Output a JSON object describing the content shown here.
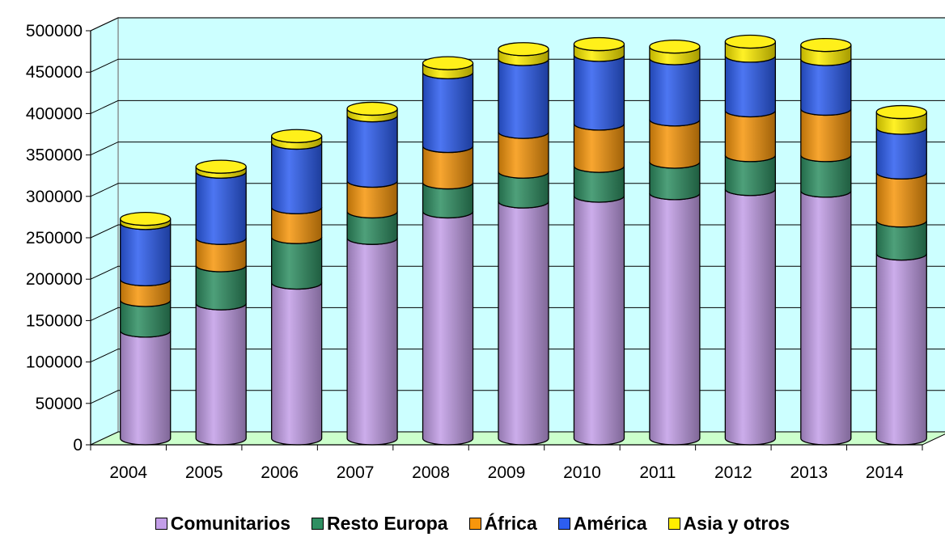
{
  "chart_data": {
    "type": "bar",
    "stacked": true,
    "style": "3d-cylinder",
    "title": "",
    "xlabel": "",
    "ylabel": "",
    "categories": [
      "2004",
      "2005",
      "2006",
      "2007",
      "2008",
      "2009",
      "2010",
      "2011",
      "2012",
      "2013",
      "2014"
    ],
    "ylim": [
      0,
      500000
    ],
    "yticks": [
      0,
      50000,
      100000,
      150000,
      200000,
      250000,
      300000,
      350000,
      400000,
      450000,
      500000
    ],
    "grid": true,
    "legend_position": "bottom",
    "series": [
      {
        "name": "Comunitarios",
        "color": "#c39ee8",
        "values": [
          130000,
          163000,
          188000,
          242000,
          274000,
          286000,
          293000,
          296000,
          301000,
          299000,
          223000
        ]
      },
      {
        "name": "Resto Europa",
        "color": "#2f8f62",
        "values": [
          37000,
          46000,
          55000,
          32000,
          35000,
          36000,
          36000,
          38000,
          41000,
          43000,
          40000
        ]
      },
      {
        "name": "África",
        "color": "#f7960c",
        "values": [
          25000,
          33000,
          36000,
          37000,
          44000,
          48000,
          51000,
          51000,
          54000,
          56000,
          58000
        ]
      },
      {
        "name": "América",
        "color": "#2d5ef0",
        "values": [
          68000,
          80000,
          78000,
          79000,
          89000,
          88000,
          83000,
          74000,
          66000,
          60000,
          54000
        ]
      },
      {
        "name": "Asia y otros",
        "color": "#ffee00",
        "values": [
          5000,
          6000,
          8000,
          8000,
          11000,
          12000,
          13000,
          14000,
          17000,
          17000,
          19000
        ]
      }
    ],
    "colors": {
      "plot_background": "#ccffff",
      "floor": "#ccffcc",
      "grid": "#000000"
    }
  }
}
